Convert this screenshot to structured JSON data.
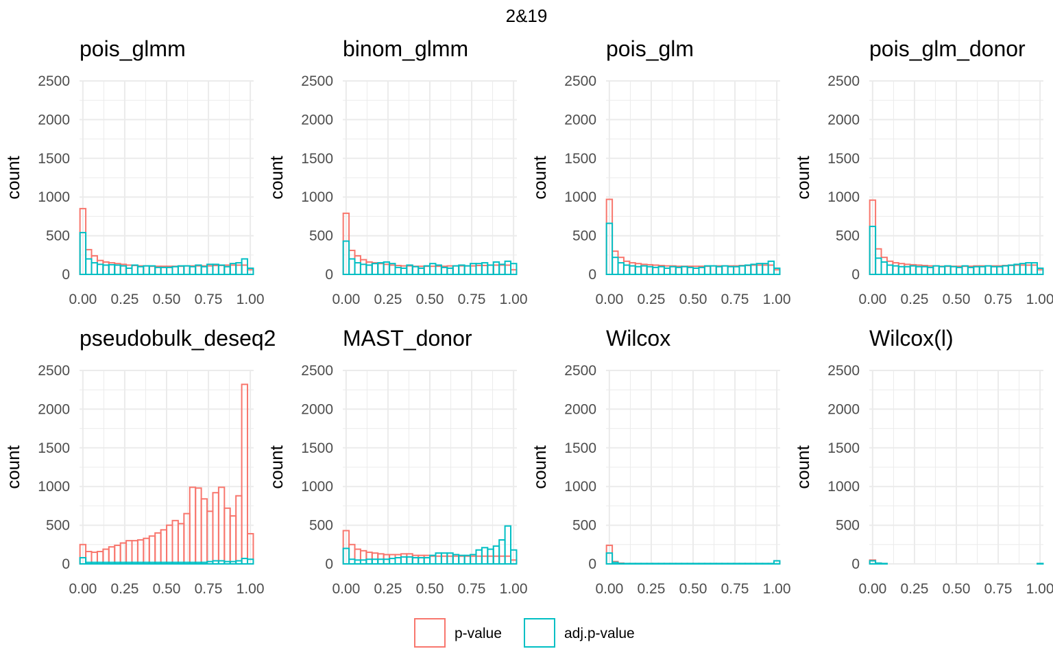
{
  "title": "2&19",
  "legend": {
    "items": [
      {
        "label": "p-value",
        "color": "#F8766D"
      },
      {
        "label": "adj.p-value",
        "color": "#00BFC4"
      }
    ]
  },
  "chart_data": {
    "type": "bar",
    "subtype": "histogram-facets",
    "title": "2&19",
    "ylabel": "count",
    "xlabel": "",
    "xlim": [
      -0.02,
      1.02
    ],
    "ylim": [
      0,
      2500
    ],
    "x_ticks": [
      0,
      0.25,
      0.5,
      0.75,
      1
    ],
    "x_tick_labels": [
      "0.00",
      "0.25",
      "0.50",
      "0.75",
      "1.00"
    ],
    "y_ticks": [
      0,
      500,
      1000,
      1500,
      2000,
      2500
    ],
    "y_tick_labels": [
      "0",
      "500",
      "1000",
      "1500",
      "2000",
      "2500"
    ],
    "bins": 30,
    "bin_width": 0.0345,
    "bin_centers_start": 0,
    "series_names": [
      "p-value",
      "adj.p-value"
    ],
    "panels": [
      {
        "name": "pois_glmm",
        "series": [
          {
            "name": "p-value",
            "values": [
              850,
              320,
              240,
              180,
              160,
              150,
              140,
              130,
              120,
              115,
              110,
              110,
              105,
              105,
              105,
              105,
              105,
              105,
              110,
              110,
              110,
              110,
              110,
              115,
              115,
              120,
              120,
              120,
              120,
              60
            ]
          },
          {
            "name": "adj.p-value",
            "values": [
              540,
              200,
              150,
              130,
              120,
              125,
              120,
              110,
              80,
              120,
              100,
              110,
              110,
              90,
              90,
              90,
              100,
              110,
              110,
              100,
              120,
              100,
              130,
              130,
              120,
              100,
              140,
              150,
              200,
              80
            ]
          }
        ]
      },
      {
        "name": "binom_glmm",
        "series": [
          {
            "name": "p-value",
            "values": [
              790,
              310,
              240,
              190,
              160,
              150,
              140,
              130,
              120,
              115,
              110,
              110,
              105,
              105,
              105,
              105,
              105,
              105,
              110,
              110,
              110,
              110,
              110,
              115,
              115,
              120,
              120,
              120,
              120,
              60
            ]
          },
          {
            "name": "adj.p-value",
            "values": [
              430,
              200,
              150,
              130,
              120,
              140,
              150,
              160,
              140,
              90,
              80,
              120,
              100,
              80,
              110,
              140,
              120,
              90,
              80,
              110,
              120,
              110,
              140,
              140,
              150,
              120,
              160,
              130,
              170,
              140
            ]
          }
        ]
      },
      {
        "name": "pois_glm",
        "series": [
          {
            "name": "p-value",
            "values": [
              970,
              300,
              220,
              170,
              150,
              140,
              130,
              125,
              120,
              115,
              110,
              110,
              105,
              105,
              105,
              105,
              105,
              105,
              110,
              110,
              110,
              110,
              110,
              115,
              115,
              120,
              120,
              120,
              120,
              60
            ]
          },
          {
            "name": "adj.p-value",
            "values": [
              660,
              220,
              150,
              120,
              110,
              100,
              110,
              100,
              90,
              100,
              80,
              100,
              90,
              100,
              90,
              80,
              90,
              110,
              110,
              100,
              110,
              100,
              100,
              110,
              120,
              130,
              140,
              140,
              170,
              80
            ]
          }
        ]
      },
      {
        "name": "pois_glm_donor",
        "series": [
          {
            "name": "p-value",
            "values": [
              960,
              330,
              220,
              170,
              150,
              140,
              130,
              125,
              120,
              115,
              110,
              110,
              105,
              105,
              105,
              105,
              105,
              105,
              110,
              110,
              110,
              110,
              110,
              115,
              115,
              120,
              120,
              120,
              120,
              60
            ]
          },
          {
            "name": "adj.p-value",
            "values": [
              620,
              210,
              160,
              120,
              110,
              100,
              100,
              110,
              100,
              100,
              90,
              110,
              100,
              110,
              100,
              90,
              110,
              90,
              100,
              100,
              110,
              100,
              100,
              110,
              120,
              130,
              140,
              150,
              150,
              80
            ]
          }
        ]
      },
      {
        "name": "pseudobulk_deseq2",
        "series": [
          {
            "name": "p-value",
            "values": [
              250,
              160,
              150,
              160,
              190,
              220,
              240,
              270,
              300,
              300,
              310,
              330,
              360,
              400,
              440,
              500,
              560,
              520,
              650,
              990,
              980,
              840,
              680,
              920,
              990,
              720,
              620,
              880,
              2320,
              390
            ]
          },
          {
            "name": "adj.p-value",
            "values": [
              80,
              20,
              20,
              20,
              20,
              20,
              20,
              20,
              20,
              20,
              20,
              20,
              20,
              20,
              20,
              20,
              20,
              20,
              20,
              20,
              20,
              20,
              30,
              40,
              40,
              30,
              30,
              40,
              70,
              60
            ]
          }
        ]
      },
      {
        "name": "MAST_donor",
        "series": [
          {
            "name": "p-value",
            "values": [
              430,
              250,
              190,
              170,
              150,
              140,
              130,
              120,
              120,
              120,
              130,
              130,
              110,
              110,
              110,
              100,
              100,
              100,
              100,
              100,
              100,
              100,
              100,
              100,
              100,
              100,
              100,
              100,
              100,
              50
            ]
          },
          {
            "name": "adj.p-value",
            "values": [
              200,
              60,
              50,
              50,
              60,
              60,
              60,
              60,
              70,
              80,
              90,
              90,
              80,
              80,
              80,
              110,
              140,
              140,
              140,
              120,
              110,
              110,
              120,
              180,
              210,
              190,
              230,
              310,
              490,
              180
            ]
          }
        ]
      },
      {
        "name": "Wilcox",
        "series": [
          {
            "name": "p-value",
            "values": [
              240,
              30,
              10,
              5,
              5,
              5,
              5,
              5,
              5,
              5,
              5,
              5,
              5,
              5,
              5,
              5,
              5,
              5,
              5,
              5,
              5,
              5,
              5,
              5,
              5,
              5,
              5,
              5,
              5,
              40
            ]
          },
          {
            "name": "adj.p-value",
            "values": [
              140,
              20,
              5,
              5,
              5,
              5,
              5,
              5,
              5,
              5,
              5,
              5,
              5,
              5,
              5,
              5,
              5,
              5,
              5,
              5,
              5,
              5,
              5,
              5,
              5,
              5,
              5,
              5,
              5,
              40
            ]
          }
        ]
      },
      {
        "name": "Wilcox(l)",
        "series": [
          {
            "name": "p-value",
            "values": [
              50,
              10,
              5,
              0,
              0,
              0,
              0,
              0,
              0,
              0,
              0,
              0,
              0,
              0,
              0,
              0,
              0,
              0,
              0,
              0,
              0,
              0,
              0,
              0,
              0,
              0,
              0,
              0,
              0,
              5
            ]
          },
          {
            "name": "adj.p-value",
            "values": [
              40,
              10,
              5,
              0,
              0,
              0,
              0,
              0,
              0,
              0,
              0,
              0,
              0,
              0,
              0,
              0,
              0,
              0,
              0,
              0,
              0,
              0,
              0,
              0,
              0,
              0,
              0,
              0,
              0,
              5
            ]
          }
        ]
      }
    ]
  }
}
